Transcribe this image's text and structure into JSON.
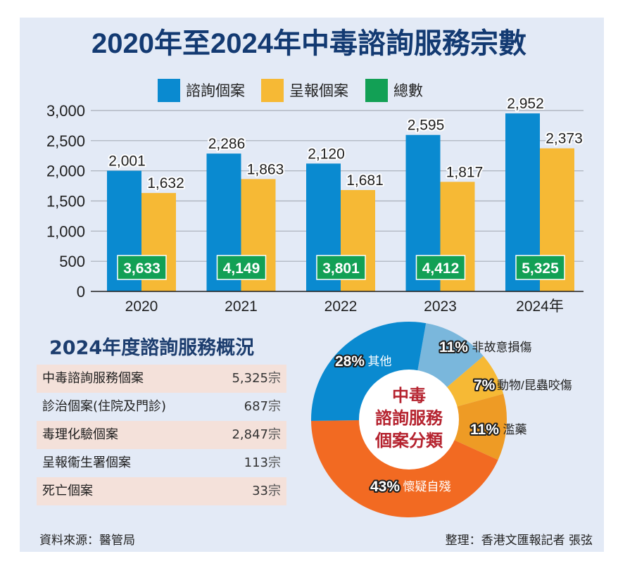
{
  "title": "2020年至2024年中毒諮詢服務宗數",
  "colors": {
    "background": "#e3eaf6",
    "consult": "#0a8ad0",
    "reported": "#f6b935",
    "total": "#12a055",
    "title": "#133a72",
    "donut_center_text": "#b5232f"
  },
  "chart_data": [
    {
      "type": "bar",
      "title": "2020年至2024年中毒諮詢服務宗數",
      "categories": [
        "2020",
        "2021",
        "2022",
        "2023",
        "2024年"
      ],
      "series": [
        {
          "name": "諮詢個案",
          "color": "#0a8ad0",
          "values": [
            2001,
            2286,
            2120,
            2595,
            2952
          ],
          "labels": [
            "2,001",
            "2,286",
            "2,120",
            "2,595",
            "2,952"
          ]
        },
        {
          "name": "呈報個案",
          "color": "#f6b935",
          "values": [
            1632,
            1863,
            1681,
            1817,
            2373
          ],
          "labels": [
            "1,632",
            "1,863",
            "1,681",
            "1,817",
            "2,373"
          ]
        },
        {
          "name": "總數",
          "color": "#12a055",
          "values": [
            3633,
            4149,
            3801,
            4412,
            5325
          ],
          "labels": [
            "3,633",
            "4,149",
            "3,801",
            "4,412",
            "5,325"
          ]
        }
      ],
      "xlabel": "",
      "ylabel": "",
      "ylim": [
        0,
        3000
      ],
      "yticks": [
        0,
        500,
        1000,
        1500,
        2000,
        2500,
        3000
      ],
      "ytick_labels": [
        "0",
        "500",
        "1,000",
        "1,500",
        "2,000",
        "2,500",
        "3,000"
      ],
      "grid": true,
      "legend": "top-center"
    },
    {
      "type": "pie",
      "title": "中毒諮詢服務個案分類",
      "center_text": [
        "中毒",
        "諮詢服務",
        "個案分類"
      ],
      "slices": [
        {
          "label": "非故意損傷",
          "value": 11,
          "display": "11%",
          "color": "#7ab7dc"
        },
        {
          "label": "動物/昆蟲咬傷",
          "value": 7,
          "display": "7%",
          "color": "#f6b935"
        },
        {
          "label": "濫藥",
          "value": 11,
          "display": "11%",
          "color": "#ee9b25"
        },
        {
          "label": "懷疑自殘",
          "value": 43,
          "display": "43%",
          "color": "#f26a22"
        },
        {
          "label": "其他",
          "value": 28,
          "display": "28%",
          "color": "#0a8ad0"
        }
      ]
    }
  ],
  "summary": {
    "title": "2024年度諮詢服務概況",
    "rows": [
      {
        "label": "中毒諮詢服務個案",
        "value": "5,325",
        "unit": "宗"
      },
      {
        "label": "診治個案(住院及門診)",
        "value": "687",
        "unit": "宗"
      },
      {
        "label": "毒理化驗個案",
        "value": "2,847",
        "unit": "宗"
      },
      {
        "label": "呈報衞生署個案",
        "value": "113",
        "unit": "宗"
      },
      {
        "label": "死亡個案",
        "value": "33",
        "unit": "宗"
      }
    ]
  },
  "footer": {
    "source": "資料來源：醫管局",
    "credit": "整理：香港文匯報記者 張弦"
  }
}
